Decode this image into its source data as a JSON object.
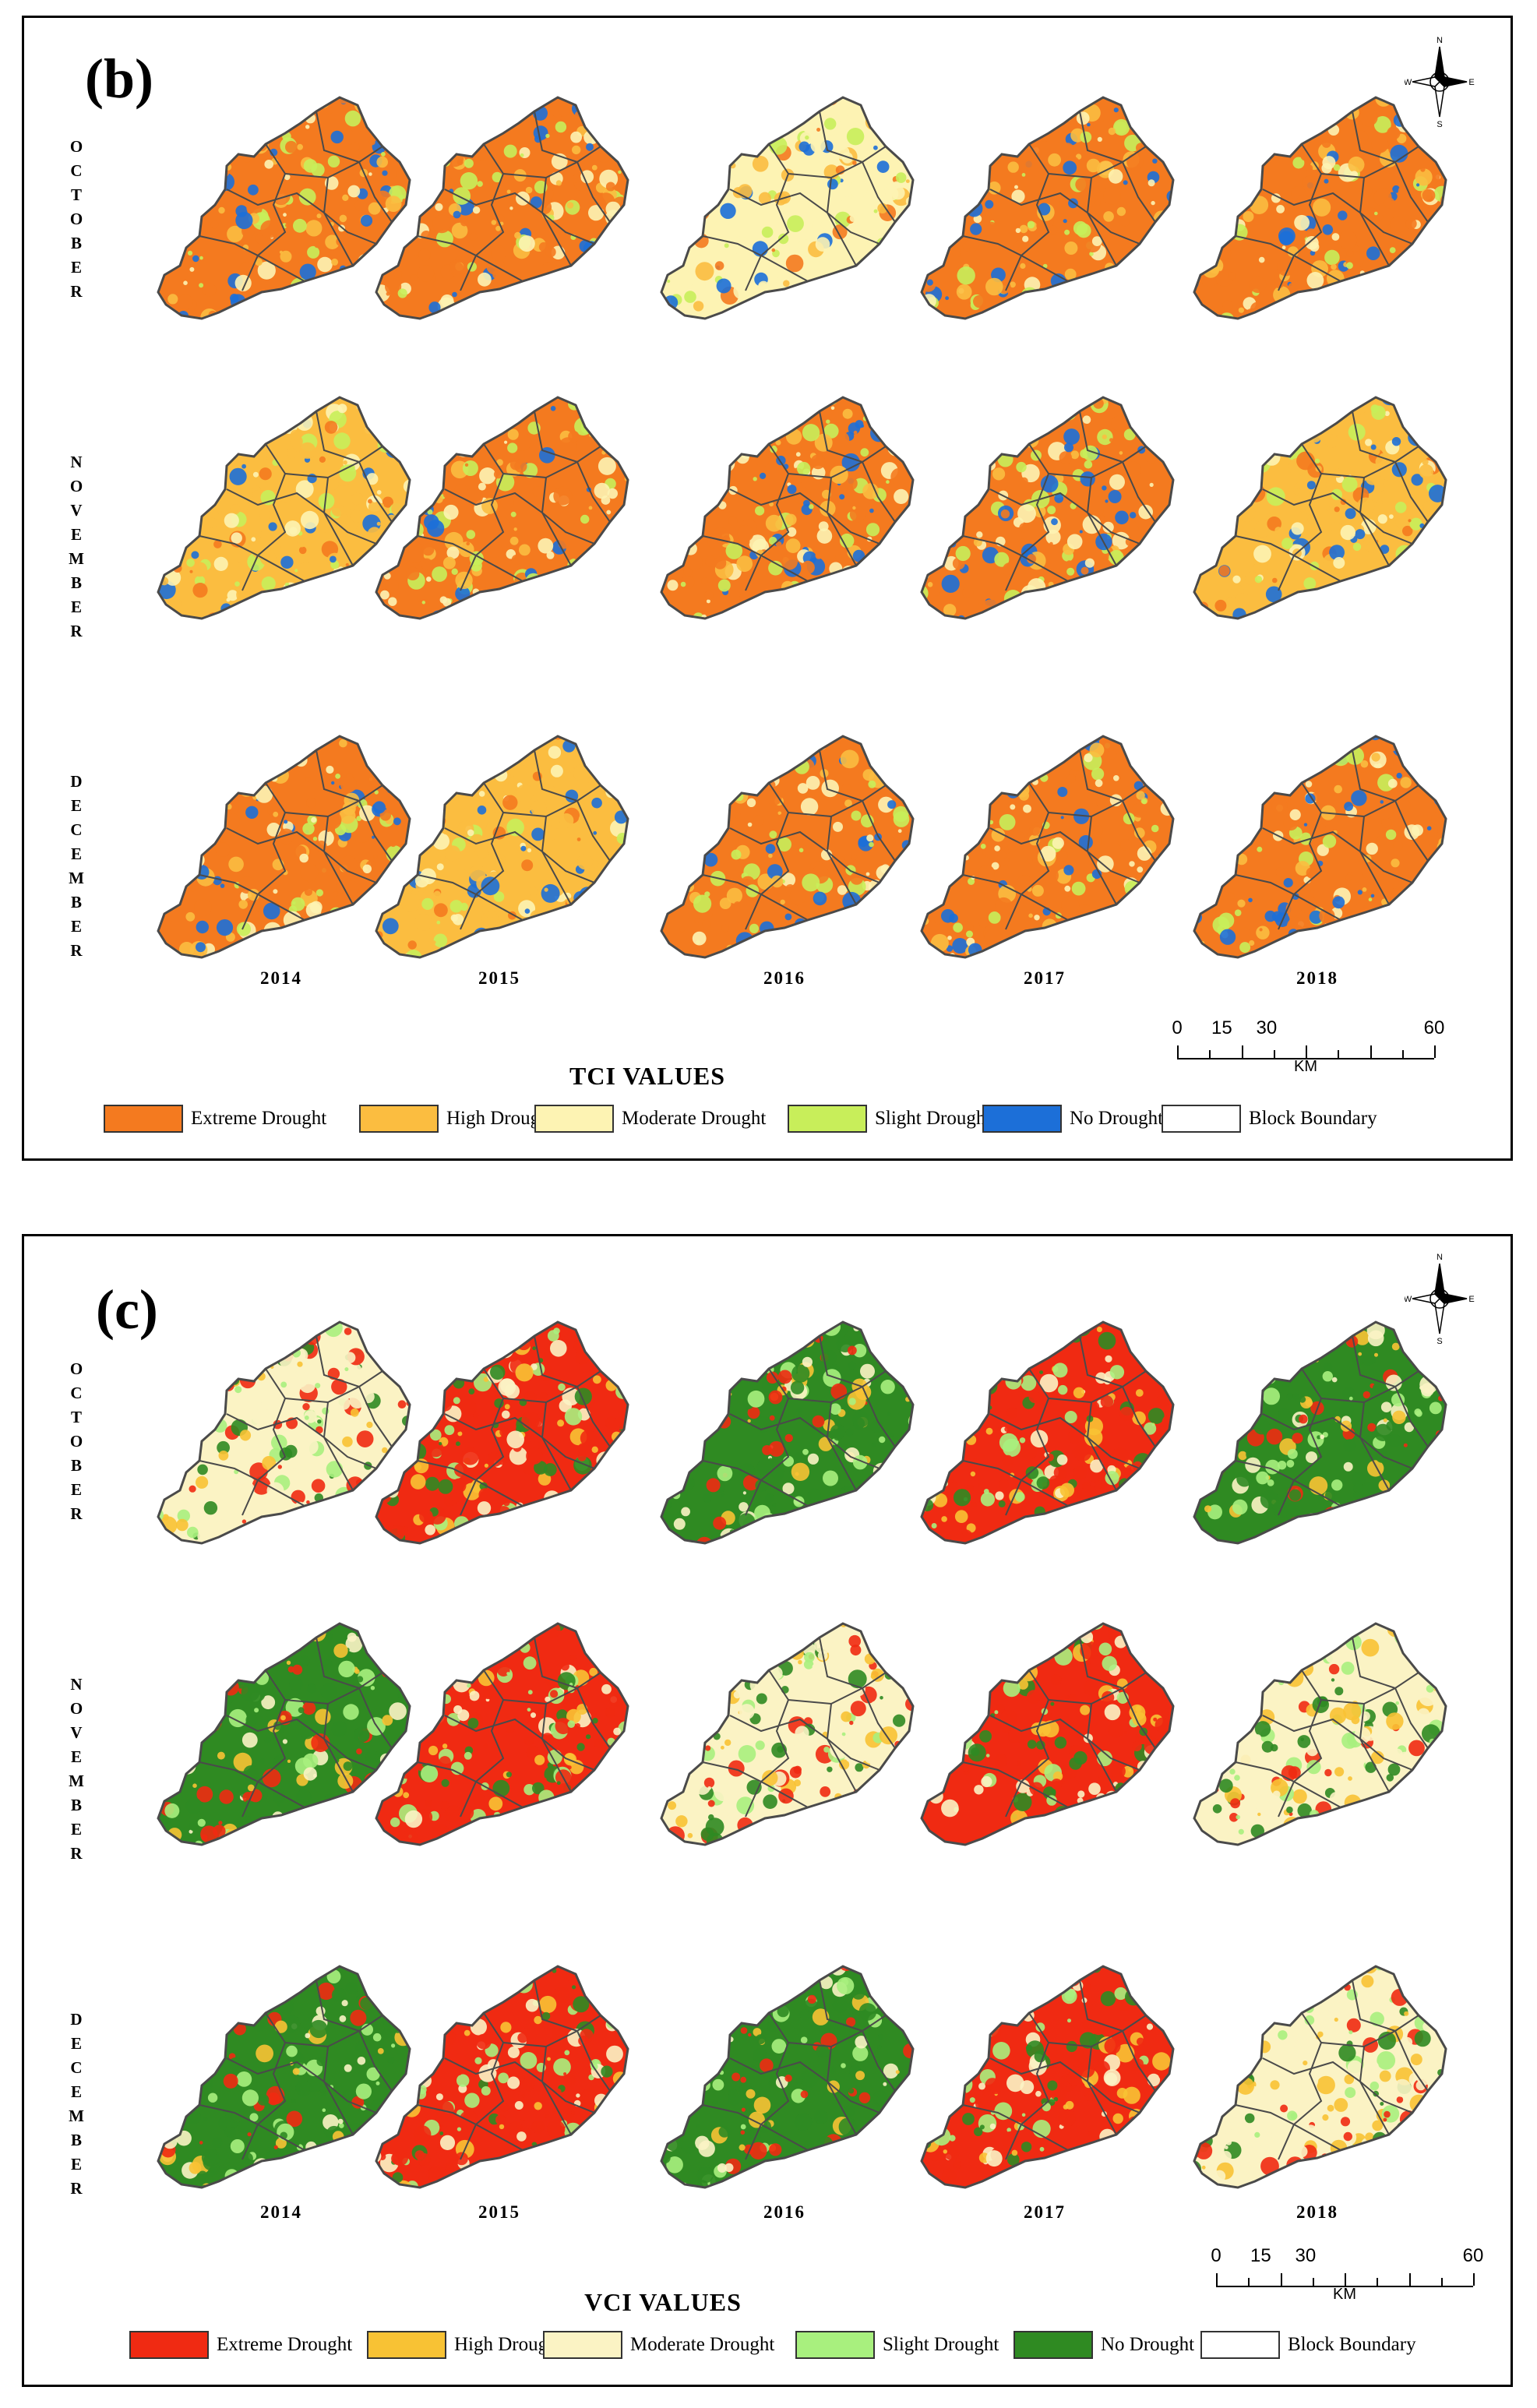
{
  "colors": {
    "tci": [
      "#f47a1f",
      "#fbbd40",
      "#fdf3b3",
      "#c8ee5a",
      "#1c6fd8"
    ],
    "vci": [
      "#f02a12",
      "#f8c234",
      "#fbf3c4",
      "#a8f07e",
      "#2f8a22"
    ],
    "boundary": "#4a4a4a"
  },
  "panels": [
    {
      "id": "tci",
      "letter": "(b)",
      "months": [
        "OCTOBER",
        "NOVEMBER",
        "DECEMBER"
      ],
      "years": [
        "2014",
        "2015",
        "2016",
        "2017",
        "2018"
      ],
      "dominant_class": [
        [
          0,
          0,
          2,
          0,
          0
        ],
        [
          1,
          0,
          0,
          0,
          1
        ],
        [
          0,
          1,
          0,
          0,
          0
        ]
      ],
      "legend_title": "TCI VALUES",
      "legend": [
        "Extreme Drought",
        "High Drought",
        "Moderate Drought",
        "Slight Drought",
        "No Drought",
        "Block Boundary"
      ],
      "scale": {
        "ticks": [
          "0",
          "15",
          "30",
          "60"
        ],
        "unit": "KM"
      },
      "compass": {
        "n": "N",
        "s": "S",
        "e": "E",
        "w": "W"
      }
    },
    {
      "id": "vci",
      "letter": "(c)",
      "months": [
        "OCTOBER",
        "NOVEMBER",
        "DECEMBER"
      ],
      "years": [
        "2014",
        "2015",
        "2016",
        "2017",
        "2018"
      ],
      "dominant_class": [
        [
          2,
          0,
          4,
          0,
          4
        ],
        [
          4,
          0,
          2,
          0,
          2
        ],
        [
          4,
          0,
          4,
          0,
          2
        ]
      ],
      "legend_title": "VCI VALUES",
      "legend": [
        "Extreme Drought",
        "High Drought",
        "Moderate Drought",
        "Slight Drought",
        "No Drought",
        "Block Boundary"
      ],
      "scale": {
        "ticks": [
          "0",
          "15",
          "30",
          "60"
        ],
        "unit": "KM"
      },
      "compass": {
        "n": "N",
        "s": "S",
        "e": "E",
        "w": "W"
      }
    }
  ]
}
